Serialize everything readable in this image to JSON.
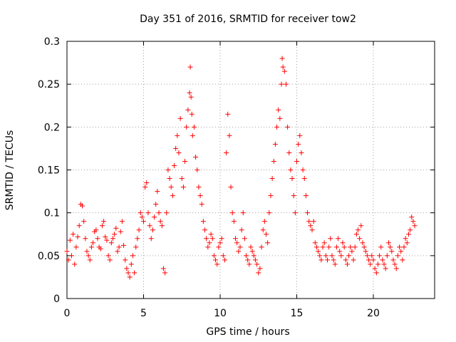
{
  "chart_data": {
    "type": "scatter",
    "title": "Day 351 of 2016, SRMTID for receiver tow2",
    "xlabel": "GPS time / hours",
    "ylabel": "SRMTID / TECUs",
    "xlim": [
      0,
      24
    ],
    "ylim": [
      0,
      0.3
    ],
    "x_ticks": [
      0,
      5,
      10,
      15,
      20
    ],
    "x_tick_labels": [
      "0",
      "5",
      "10",
      "15",
      "20"
    ],
    "y_ticks": [
      0,
      0.05,
      0.1,
      0.15,
      0.2,
      0.25,
      0.3
    ],
    "y_tick_labels": [
      "0",
      "0.05",
      "0.1",
      "0.15",
      "0.2",
      "0.25",
      "0.3"
    ],
    "grid": true,
    "marker": "+",
    "series": [
      {
        "name": "SRMTID",
        "color": "#ff0000",
        "points": [
          [
            0.0,
            0.055
          ],
          [
            0.1,
            0.045
          ],
          [
            0.2,
            0.068
          ],
          [
            0.3,
            0.05
          ],
          [
            0.4,
            0.075
          ],
          [
            0.5,
            0.04
          ],
          [
            0.6,
            0.06
          ],
          [
            0.7,
            0.072
          ],
          [
            0.8,
            0.085
          ],
          [
            0.9,
            0.11
          ],
          [
            1.0,
            0.108
          ],
          [
            1.1,
            0.09
          ],
          [
            1.2,
            0.07
          ],
          [
            1.3,
            0.055
          ],
          [
            1.4,
            0.05
          ],
          [
            1.5,
            0.045
          ],
          [
            1.6,
            0.06
          ],
          [
            1.7,
            0.065
          ],
          [
            1.8,
            0.078
          ],
          [
            1.9,
            0.08
          ],
          [
            2.0,
            0.07
          ],
          [
            2.1,
            0.06
          ],
          [
            2.2,
            0.058
          ],
          [
            2.3,
            0.085
          ],
          [
            2.4,
            0.09
          ],
          [
            2.5,
            0.072
          ],
          [
            2.6,
            0.068
          ],
          [
            2.7,
            0.05
          ],
          [
            2.8,
            0.045
          ],
          [
            2.9,
            0.065
          ],
          [
            3.0,
            0.07
          ],
          [
            3.1,
            0.075
          ],
          [
            3.2,
            0.082
          ],
          [
            3.3,
            0.055
          ],
          [
            3.4,
            0.06
          ],
          [
            3.5,
            0.078
          ],
          [
            3.6,
            0.09
          ],
          [
            3.7,
            0.062
          ],
          [
            3.8,
            0.045
          ],
          [
            3.9,
            0.035
          ],
          [
            4.0,
            0.03
          ],
          [
            4.1,
            0.025
          ],
          [
            4.2,
            0.04
          ],
          [
            4.3,
            0.05
          ],
          [
            4.4,
            0.03
          ],
          [
            4.5,
            0.06
          ],
          [
            4.6,
            0.07
          ],
          [
            4.7,
            0.08
          ],
          [
            4.8,
            0.1
          ],
          [
            4.9,
            0.095
          ],
          [
            5.0,
            0.09
          ],
          [
            5.1,
            0.13
          ],
          [
            5.2,
            0.135
          ],
          [
            5.3,
            0.1
          ],
          [
            5.4,
            0.085
          ],
          [
            5.5,
            0.07
          ],
          [
            5.6,
            0.08
          ],
          [
            5.7,
            0.095
          ],
          [
            5.8,
            0.11
          ],
          [
            5.9,
            0.125
          ],
          [
            6.0,
            0.1
          ],
          [
            6.1,
            0.09
          ],
          [
            6.2,
            0.085
          ],
          [
            6.3,
            0.035
          ],
          [
            6.4,
            0.03
          ],
          [
            6.5,
            0.1
          ],
          [
            6.6,
            0.15
          ],
          [
            6.7,
            0.14
          ],
          [
            6.8,
            0.13
          ],
          [
            6.9,
            0.12
          ],
          [
            7.0,
            0.155
          ],
          [
            7.1,
            0.175
          ],
          [
            7.2,
            0.19
          ],
          [
            7.3,
            0.17
          ],
          [
            7.4,
            0.21
          ],
          [
            7.5,
            0.14
          ],
          [
            7.6,
            0.13
          ],
          [
            7.7,
            0.16
          ],
          [
            7.8,
            0.2
          ],
          [
            7.9,
            0.22
          ],
          [
            8.0,
            0.24
          ],
          [
            8.05,
            0.27
          ],
          [
            8.1,
            0.235
          ],
          [
            8.15,
            0.215
          ],
          [
            8.2,
            0.19
          ],
          [
            8.3,
            0.2
          ],
          [
            8.4,
            0.165
          ],
          [
            8.5,
            0.15
          ],
          [
            8.6,
            0.13
          ],
          [
            8.7,
            0.12
          ],
          [
            8.8,
            0.11
          ],
          [
            8.9,
            0.09
          ],
          [
            9.0,
            0.08
          ],
          [
            9.1,
            0.07
          ],
          [
            9.2,
            0.06
          ],
          [
            9.3,
            0.065
          ],
          [
            9.4,
            0.075
          ],
          [
            9.5,
            0.07
          ],
          [
            9.6,
            0.05
          ],
          [
            9.7,
            0.045
          ],
          [
            9.8,
            0.04
          ],
          [
            9.9,
            0.06
          ],
          [
            10.0,
            0.065
          ],
          [
            10.1,
            0.07
          ],
          [
            10.2,
            0.05
          ],
          [
            10.3,
            0.045
          ],
          [
            10.4,
            0.17
          ],
          [
            10.5,
            0.215
          ],
          [
            10.6,
            0.19
          ],
          [
            10.7,
            0.13
          ],
          [
            10.8,
            0.1
          ],
          [
            10.9,
            0.09
          ],
          [
            11.0,
            0.07
          ],
          [
            11.1,
            0.065
          ],
          [
            11.2,
            0.055
          ],
          [
            11.3,
            0.06
          ],
          [
            11.4,
            0.08
          ],
          [
            11.5,
            0.1
          ],
          [
            11.6,
            0.07
          ],
          [
            11.7,
            0.05
          ],
          [
            11.8,
            0.045
          ],
          [
            11.9,
            0.04
          ],
          [
            12.0,
            0.06
          ],
          [
            12.1,
            0.055
          ],
          [
            12.2,
            0.05
          ],
          [
            12.3,
            0.045
          ],
          [
            12.4,
            0.04
          ],
          [
            12.5,
            0.03
          ],
          [
            12.6,
            0.035
          ],
          [
            12.7,
            0.06
          ],
          [
            12.8,
            0.08
          ],
          [
            12.9,
            0.09
          ],
          [
            13.0,
            0.075
          ],
          [
            13.1,
            0.065
          ],
          [
            13.2,
            0.1
          ],
          [
            13.3,
            0.12
          ],
          [
            13.4,
            0.14
          ],
          [
            13.5,
            0.16
          ],
          [
            13.6,
            0.18
          ],
          [
            13.7,
            0.2
          ],
          [
            13.8,
            0.22
          ],
          [
            13.9,
            0.21
          ],
          [
            14.0,
            0.25
          ],
          [
            14.05,
            0.28
          ],
          [
            14.1,
            0.27
          ],
          [
            14.2,
            0.265
          ],
          [
            14.3,
            0.25
          ],
          [
            14.4,
            0.2
          ],
          [
            14.5,
            0.17
          ],
          [
            14.6,
            0.15
          ],
          [
            14.7,
            0.14
          ],
          [
            14.8,
            0.12
          ],
          [
            14.9,
            0.1
          ],
          [
            15.0,
            0.16
          ],
          [
            15.1,
            0.18
          ],
          [
            15.2,
            0.19
          ],
          [
            15.3,
            0.17
          ],
          [
            15.4,
            0.15
          ],
          [
            15.5,
            0.14
          ],
          [
            15.6,
            0.12
          ],
          [
            15.7,
            0.1
          ],
          [
            15.8,
            0.09
          ],
          [
            15.9,
            0.085
          ],
          [
            16.0,
            0.08
          ],
          [
            16.1,
            0.09
          ],
          [
            16.2,
            0.065
          ],
          [
            16.3,
            0.06
          ],
          [
            16.4,
            0.055
          ],
          [
            16.5,
            0.05
          ],
          [
            16.6,
            0.045
          ],
          [
            16.7,
            0.06
          ],
          [
            16.8,
            0.065
          ],
          [
            16.9,
            0.05
          ],
          [
            17.0,
            0.045
          ],
          [
            17.1,
            0.06
          ],
          [
            17.2,
            0.07
          ],
          [
            17.3,
            0.05
          ],
          [
            17.4,
            0.045
          ],
          [
            17.5,
            0.04
          ],
          [
            17.6,
            0.06
          ],
          [
            17.7,
            0.07
          ],
          [
            17.8,
            0.055
          ],
          [
            17.9,
            0.05
          ],
          [
            18.0,
            0.065
          ],
          [
            18.1,
            0.06
          ],
          [
            18.2,
            0.045
          ],
          [
            18.3,
            0.04
          ],
          [
            18.4,
            0.05
          ],
          [
            18.5,
            0.06
          ],
          [
            18.6,
            0.055
          ],
          [
            18.7,
            0.045
          ],
          [
            18.8,
            0.06
          ],
          [
            18.9,
            0.075
          ],
          [
            19.0,
            0.08
          ],
          [
            19.1,
            0.07
          ],
          [
            19.2,
            0.085
          ],
          [
            19.3,
            0.065
          ],
          [
            19.4,
            0.06
          ],
          [
            19.5,
            0.055
          ],
          [
            19.6,
            0.05
          ],
          [
            19.7,
            0.045
          ],
          [
            19.8,
            0.04
          ],
          [
            19.9,
            0.05
          ],
          [
            20.0,
            0.045
          ],
          [
            20.1,
            0.035
          ],
          [
            20.2,
            0.03
          ],
          [
            20.3,
            0.04
          ],
          [
            20.4,
            0.05
          ],
          [
            20.5,
            0.06
          ],
          [
            20.6,
            0.045
          ],
          [
            20.7,
            0.04
          ],
          [
            20.8,
            0.035
          ],
          [
            20.9,
            0.05
          ],
          [
            21.0,
            0.065
          ],
          [
            21.1,
            0.06
          ],
          [
            21.2,
            0.055
          ],
          [
            21.3,
            0.045
          ],
          [
            21.4,
            0.04
          ],
          [
            21.5,
            0.035
          ],
          [
            21.6,
            0.05
          ],
          [
            21.7,
            0.06
          ],
          [
            21.8,
            0.055
          ],
          [
            21.9,
            0.045
          ],
          [
            22.0,
            0.06
          ],
          [
            22.1,
            0.07
          ],
          [
            22.2,
            0.065
          ],
          [
            22.3,
            0.075
          ],
          [
            22.4,
            0.08
          ],
          [
            22.5,
            0.095
          ],
          [
            22.6,
            0.09
          ],
          [
            22.7,
            0.085
          ]
        ]
      }
    ]
  }
}
